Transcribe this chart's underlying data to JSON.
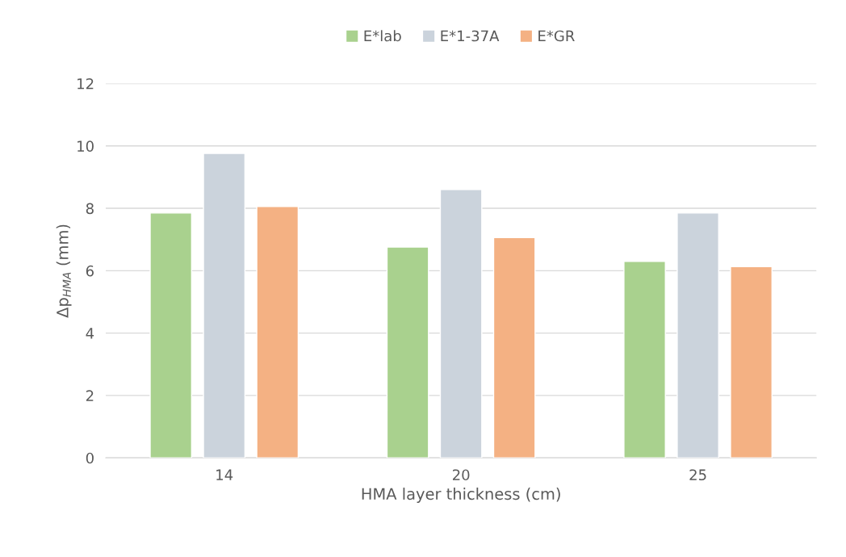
{
  "chart_data": {
    "type": "bar",
    "xlabel": "HMA layer thickness (cm)",
    "ylabel": "Δp$_{HMA}$ (mm)",
    "categories": [
      "14",
      "20",
      "25"
    ],
    "series": [
      {
        "name": "E*lab",
        "color": "#a9d18e",
        "values": [
          7.85,
          6.76,
          6.3
        ]
      },
      {
        "name": "E*1-37A",
        "color": "#cbd3dc",
        "values": [
          9.76,
          8.6,
          7.85
        ]
      },
      {
        "name": "E*GR",
        "color": "#f4b183",
        "values": [
          8.06,
          7.06,
          6.13
        ]
      }
    ],
    "ylim": [
      0,
      12
    ],
    "yticks": [
      0,
      2,
      4,
      6,
      8,
      10,
      12
    ],
    "grid": "y",
    "legend": "top"
  }
}
